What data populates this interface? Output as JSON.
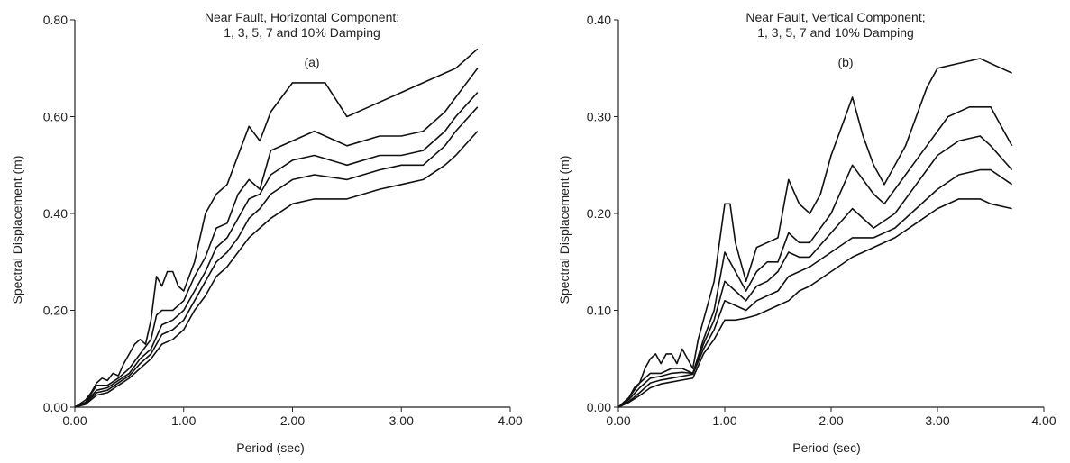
{
  "chart_data": [
    {
      "type": "line",
      "title": "Near Fault, Horizontal Component;",
      "subtitle": "1, 3, 5, 7 and 10% Damping",
      "panel_label": "(a)",
      "xlabel": "Period (sec)",
      "ylabel": "Spectral Displacement (m)",
      "xlim": [
        0,
        4
      ],
      "ylim": [
        0,
        0.8
      ],
      "x_ticks": [
        "0.00",
        "1.00",
        "2.00",
        "3.00",
        "4.00"
      ],
      "y_ticks": [
        "0.00",
        "0.20",
        "0.40",
        "0.60",
        "0.80"
      ],
      "grid": false,
      "series": [
        {
          "x": [
            0,
            0.1,
            0.15,
            0.2,
            0.25,
            0.3,
            0.35,
            0.4,
            0.45,
            0.5,
            0.55,
            0.6,
            0.65,
            0.7,
            0.75,
            0.8,
            0.85,
            0.9,
            0.95,
            1.0,
            1.05,
            1.1,
            1.2,
            1.3,
            1.4,
            1.5,
            1.6,
            1.7,
            1.8,
            1.9,
            2.0,
            2.2,
            2.3,
            2.5,
            2.7,
            3.0,
            3.2,
            3.4,
            3.5,
            3.7
          ],
          "y": [
            0,
            0.015,
            0.03,
            0.05,
            0.06,
            0.055,
            0.07,
            0.065,
            0.09,
            0.11,
            0.13,
            0.14,
            0.13,
            0.18,
            0.27,
            0.25,
            0.28,
            0.28,
            0.25,
            0.24,
            0.27,
            0.3,
            0.4,
            0.44,
            0.46,
            0.52,
            0.58,
            0.55,
            0.61,
            0.64,
            0.67,
            0.67,
            0.67,
            0.6,
            0.62,
            0.65,
            0.67,
            0.69,
            0.7,
            0.74
          ]
        },
        {
          "x": [
            0,
            0.1,
            0.2,
            0.3,
            0.4,
            0.5,
            0.6,
            0.7,
            0.75,
            0.8,
            0.9,
            1.0,
            1.1,
            1.2,
            1.3,
            1.4,
            1.5,
            1.6,
            1.7,
            1.8,
            2.0,
            2.2,
            2.5,
            2.8,
            3.0,
            3.2,
            3.4,
            3.5,
            3.7
          ],
          "y": [
            0,
            0.01,
            0.045,
            0.045,
            0.06,
            0.08,
            0.11,
            0.14,
            0.19,
            0.2,
            0.2,
            0.22,
            0.27,
            0.31,
            0.37,
            0.38,
            0.44,
            0.47,
            0.45,
            0.53,
            0.55,
            0.57,
            0.54,
            0.56,
            0.56,
            0.57,
            0.61,
            0.64,
            0.7
          ]
        },
        {
          "x": [
            0,
            0.1,
            0.2,
            0.3,
            0.4,
            0.5,
            0.6,
            0.7,
            0.8,
            0.9,
            1.0,
            1.1,
            1.2,
            1.3,
            1.4,
            1.5,
            1.6,
            1.7,
            1.8,
            2.0,
            2.2,
            2.5,
            2.8,
            3.0,
            3.2,
            3.4,
            3.5,
            3.7
          ],
          "y": [
            0,
            0.01,
            0.035,
            0.04,
            0.055,
            0.07,
            0.1,
            0.12,
            0.17,
            0.18,
            0.2,
            0.24,
            0.28,
            0.33,
            0.35,
            0.39,
            0.43,
            0.44,
            0.48,
            0.51,
            0.52,
            0.5,
            0.52,
            0.52,
            0.53,
            0.57,
            0.6,
            0.65
          ]
        },
        {
          "x": [
            0,
            0.1,
            0.2,
            0.3,
            0.4,
            0.5,
            0.6,
            0.7,
            0.8,
            0.9,
            1.0,
            1.1,
            1.2,
            1.3,
            1.4,
            1.5,
            1.6,
            1.7,
            1.8,
            2.0,
            2.2,
            2.5,
            2.8,
            3.0,
            3.2,
            3.4,
            3.5,
            3.7
          ],
          "y": [
            0,
            0.008,
            0.03,
            0.035,
            0.05,
            0.065,
            0.09,
            0.11,
            0.15,
            0.16,
            0.18,
            0.22,
            0.26,
            0.3,
            0.32,
            0.35,
            0.39,
            0.41,
            0.44,
            0.47,
            0.48,
            0.47,
            0.49,
            0.5,
            0.5,
            0.54,
            0.57,
            0.62
          ]
        },
        {
          "x": [
            0,
            0.1,
            0.2,
            0.3,
            0.4,
            0.5,
            0.6,
            0.7,
            0.8,
            0.9,
            1.0,
            1.1,
            1.2,
            1.3,
            1.4,
            1.5,
            1.6,
            1.7,
            1.8,
            2.0,
            2.2,
            2.5,
            2.8,
            3.0,
            3.2,
            3.4,
            3.5,
            3.7
          ],
          "y": [
            0,
            0.006,
            0.025,
            0.03,
            0.045,
            0.06,
            0.08,
            0.1,
            0.13,
            0.14,
            0.16,
            0.2,
            0.23,
            0.27,
            0.29,
            0.32,
            0.35,
            0.37,
            0.39,
            0.42,
            0.43,
            0.43,
            0.45,
            0.46,
            0.47,
            0.5,
            0.52,
            0.57
          ]
        }
      ]
    },
    {
      "type": "line",
      "title": "Near Fault, Vertical Component;",
      "subtitle": "1, 3, 5, 7 and 10% Damping",
      "panel_label": "(b)",
      "xlabel": "Period (sec)",
      "ylabel": "Spectral Displacement (m)",
      "xlim": [
        0,
        4
      ],
      "ylim": [
        0,
        0.4
      ],
      "x_ticks": [
        "0.00",
        "1.00",
        "2.00",
        "3.00",
        "4.00"
      ],
      "y_ticks": [
        "0.00",
        "0.10",
        "0.20",
        "0.30",
        "0.40"
      ],
      "grid": false,
      "series": [
        {
          "x": [
            0,
            0.1,
            0.15,
            0.2,
            0.25,
            0.3,
            0.35,
            0.4,
            0.45,
            0.5,
            0.55,
            0.6,
            0.65,
            0.7,
            0.75,
            0.8,
            0.9,
            1.0,
            1.05,
            1.1,
            1.2,
            1.3,
            1.4,
            1.5,
            1.6,
            1.7,
            1.8,
            1.9,
            2.0,
            2.1,
            2.2,
            2.3,
            2.4,
            2.5,
            2.7,
            2.9,
            3.0,
            3.2,
            3.4,
            3.6,
            3.7
          ],
          "y": [
            0,
            0.01,
            0.02,
            0.025,
            0.04,
            0.05,
            0.055,
            0.045,
            0.055,
            0.055,
            0.045,
            0.06,
            0.05,
            0.04,
            0.07,
            0.09,
            0.13,
            0.21,
            0.21,
            0.17,
            0.13,
            0.165,
            0.17,
            0.175,
            0.235,
            0.21,
            0.2,
            0.22,
            0.26,
            0.29,
            0.32,
            0.28,
            0.25,
            0.23,
            0.27,
            0.33,
            0.35,
            0.355,
            0.36,
            0.35,
            0.345
          ]
        },
        {
          "x": [
            0,
            0.1,
            0.2,
            0.3,
            0.4,
            0.5,
            0.6,
            0.7,
            0.8,
            0.9,
            1.0,
            1.1,
            1.2,
            1.3,
            1.4,
            1.5,
            1.6,
            1.7,
            1.8,
            2.0,
            2.2,
            2.4,
            2.5,
            2.7,
            2.9,
            3.1,
            3.3,
            3.5,
            3.7
          ],
          "y": [
            0,
            0.01,
            0.025,
            0.035,
            0.035,
            0.04,
            0.04,
            0.035,
            0.07,
            0.1,
            0.16,
            0.14,
            0.12,
            0.14,
            0.15,
            0.15,
            0.18,
            0.17,
            0.17,
            0.2,
            0.25,
            0.22,
            0.21,
            0.24,
            0.27,
            0.3,
            0.31,
            0.31,
            0.27
          ]
        },
        {
          "x": [
            0,
            0.1,
            0.2,
            0.3,
            0.4,
            0.5,
            0.6,
            0.7,
            0.8,
            0.9,
            1.0,
            1.1,
            1.2,
            1.3,
            1.4,
            1.5,
            1.6,
            1.7,
            1.8,
            2.0,
            2.2,
            2.4,
            2.6,
            2.8,
            3.0,
            3.2,
            3.4,
            3.5,
            3.7
          ],
          "y": [
            0,
            0.008,
            0.02,
            0.03,
            0.032,
            0.035,
            0.036,
            0.035,
            0.065,
            0.09,
            0.13,
            0.12,
            0.11,
            0.125,
            0.13,
            0.14,
            0.16,
            0.155,
            0.155,
            0.18,
            0.205,
            0.185,
            0.2,
            0.23,
            0.26,
            0.275,
            0.28,
            0.27,
            0.245
          ]
        },
        {
          "x": [
            0,
            0.1,
            0.2,
            0.3,
            0.4,
            0.5,
            0.6,
            0.7,
            0.8,
            0.9,
            1.0,
            1.1,
            1.2,
            1.3,
            1.4,
            1.5,
            1.6,
            1.7,
            1.8,
            2.0,
            2.2,
            2.4,
            2.6,
            2.8,
            3.0,
            3.2,
            3.4,
            3.5,
            3.7
          ],
          "y": [
            0,
            0.006,
            0.015,
            0.025,
            0.028,
            0.03,
            0.032,
            0.034,
            0.06,
            0.08,
            0.11,
            0.105,
            0.1,
            0.11,
            0.115,
            0.12,
            0.135,
            0.14,
            0.145,
            0.16,
            0.175,
            0.175,
            0.185,
            0.205,
            0.225,
            0.24,
            0.245,
            0.245,
            0.23
          ]
        },
        {
          "x": [
            0,
            0.1,
            0.2,
            0.3,
            0.4,
            0.5,
            0.6,
            0.7,
            0.8,
            0.9,
            1.0,
            1.1,
            1.2,
            1.3,
            1.4,
            1.5,
            1.6,
            1.7,
            1.8,
            2.0,
            2.2,
            2.4,
            2.6,
            2.8,
            3.0,
            3.2,
            3.4,
            3.5,
            3.7
          ],
          "y": [
            0,
            0.005,
            0.012,
            0.02,
            0.024,
            0.026,
            0.028,
            0.03,
            0.055,
            0.07,
            0.09,
            0.09,
            0.092,
            0.095,
            0.1,
            0.105,
            0.11,
            0.12,
            0.125,
            0.14,
            0.155,
            0.165,
            0.175,
            0.19,
            0.205,
            0.215,
            0.215,
            0.21,
            0.205
          ]
        }
      ]
    }
  ]
}
